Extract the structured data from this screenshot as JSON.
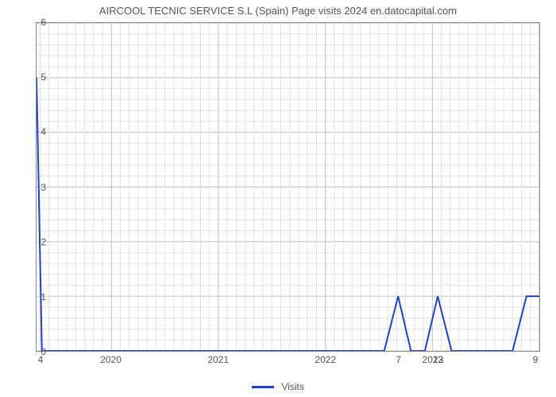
{
  "chart": {
    "type": "line",
    "title": "AIRCOOL TECNIC SERVICE S.L (Spain) Page visits 2024 en.datocapital.com",
    "title_fontsize": 13,
    "title_color": "#555555",
    "background_color": "#ffffff",
    "plot_border_color": "#888888",
    "grid_major_color": "#bfbfbf",
    "grid_minor_color": "#e2e2e2",
    "axis_label_color": "#555555",
    "axis_label_fontsize": 12,
    "y_axis": {
      "min": 0,
      "max": 6,
      "ticks": [
        0,
        1,
        2,
        3,
        4,
        5,
        6
      ],
      "minor_step": 0.2
    },
    "x_axis": {
      "min": 2019.3,
      "max": 2024.0,
      "year_labels": [
        2020,
        2021,
        2022,
        2023
      ],
      "minor_divisions_per_year": 12
    },
    "legend": {
      "label": "Visits",
      "swatch_color": "#1f3fd4"
    },
    "series": {
      "name": "Visits",
      "color": "#1f3fd4",
      "line_width": 2,
      "points": [
        [
          2019.3,
          5.0
        ],
        [
          2019.35,
          0.0
        ],
        [
          2022.55,
          0.0
        ],
        [
          2022.68,
          1.0
        ],
        [
          2022.8,
          0.0
        ],
        [
          2022.93,
          0.0
        ],
        [
          2023.05,
          1.0
        ],
        [
          2023.18,
          0.0
        ],
        [
          2023.75,
          0.0
        ],
        [
          2023.88,
          1.0
        ],
        [
          2024.0,
          1.0
        ]
      ]
    },
    "callouts": [
      {
        "x": 2019.3,
        "label": "4"
      },
      {
        "x": 2022.68,
        "label": "7"
      },
      {
        "x": 2023.05,
        "label": "12"
      },
      {
        "x": 2024.0,
        "label": "9"
      }
    ]
  }
}
